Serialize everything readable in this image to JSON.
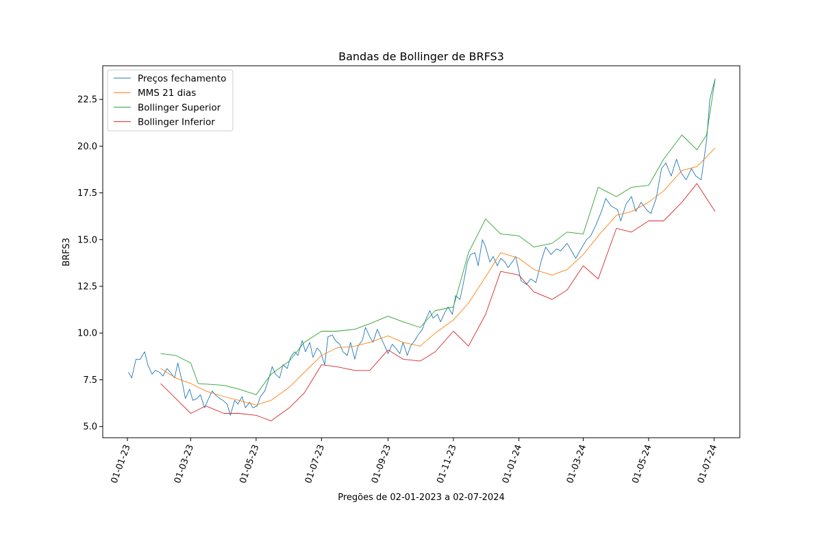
{
  "chart_data": {
    "type": "line",
    "title": "Bandas de Bollinger de BRFS3",
    "xlabel": "Pregões de 02-01-2023 a 02-07-2024",
    "ylabel": "BRFS3",
    "xlim": [
      "2022-12-09",
      "2024-07-25"
    ],
    "ylim": [
      4.4,
      24.3
    ],
    "grid": false,
    "legend_position": "top-left",
    "x_ticks": [
      {
        "date": "2023-01-01",
        "label": "01-01-23"
      },
      {
        "date": "2023-03-01",
        "label": "01-03-23"
      },
      {
        "date": "2023-05-01",
        "label": "01-05-23"
      },
      {
        "date": "2023-07-01",
        "label": "01-07-23"
      },
      {
        "date": "2023-09-01",
        "label": "01-09-23"
      },
      {
        "date": "2023-11-01",
        "label": "01-11-23"
      },
      {
        "date": "2024-01-01",
        "label": "01-01-24"
      },
      {
        "date": "2024-03-01",
        "label": "01-03-24"
      },
      {
        "date": "2024-05-01",
        "label": "01-05-24"
      },
      {
        "date": "2024-07-01",
        "label": "01-07-24"
      }
    ],
    "y_ticks": [
      {
        "value": 5.0,
        "label": "5.0"
      },
      {
        "value": 7.5,
        "label": "7.5"
      },
      {
        "value": 10.0,
        "label": "10.0"
      },
      {
        "value": 12.5,
        "label": "12.5"
      },
      {
        "value": 15.0,
        "label": "15.0"
      },
      {
        "value": 17.5,
        "label": "17.5"
      },
      {
        "value": 20.0,
        "label": "20.0"
      },
      {
        "value": 22.5,
        "label": "22.5"
      }
    ],
    "series": [
      {
        "name": "Preços fechamento",
        "color": "#1f77b4",
        "points": [
          [
            "2023-01-02",
            7.9
          ],
          [
            "2023-01-05",
            7.6
          ],
          [
            "2023-01-09",
            8.6
          ],
          [
            "2023-01-13",
            8.6
          ],
          [
            "2023-01-17",
            9.0
          ],
          [
            "2023-01-20",
            8.3
          ],
          [
            "2023-01-24",
            7.8
          ],
          [
            "2023-01-27",
            8.0
          ],
          [
            "2023-01-31",
            7.9
          ],
          [
            "2023-02-03",
            7.7
          ],
          [
            "2023-02-07",
            8.1
          ],
          [
            "2023-02-10",
            7.9
          ],
          [
            "2023-02-14",
            7.6
          ],
          [
            "2023-02-17",
            8.4
          ],
          [
            "2023-02-21",
            7.4
          ],
          [
            "2023-02-24",
            6.5
          ],
          [
            "2023-02-28",
            7.0
          ],
          [
            "2023-03-03",
            6.4
          ],
          [
            "2023-03-07",
            6.5
          ],
          [
            "2023-03-10",
            6.7
          ],
          [
            "2023-03-14",
            6.0
          ],
          [
            "2023-03-17",
            6.4
          ],
          [
            "2023-03-21",
            6.9
          ],
          [
            "2023-03-24",
            6.7
          ],
          [
            "2023-03-28",
            6.5
          ],
          [
            "2023-03-31",
            6.4
          ],
          [
            "2023-04-04",
            6.2
          ],
          [
            "2023-04-07",
            5.6
          ],
          [
            "2023-04-11",
            6.4
          ],
          [
            "2023-04-14",
            6.2
          ],
          [
            "2023-04-18",
            6.6
          ],
          [
            "2023-04-21",
            6.0
          ],
          [
            "2023-04-25",
            6.3
          ],
          [
            "2023-04-28",
            6.0
          ],
          [
            "2023-05-02",
            6.1
          ],
          [
            "2023-05-05",
            6.6
          ],
          [
            "2023-05-09",
            6.9
          ],
          [
            "2023-05-12",
            7.4
          ],
          [
            "2023-05-16",
            8.2
          ],
          [
            "2023-05-19",
            7.8
          ],
          [
            "2023-05-23",
            7.6
          ],
          [
            "2023-05-26",
            8.3
          ],
          [
            "2023-05-30",
            8.1
          ],
          [
            "2023-06-02",
            8.7
          ],
          [
            "2023-06-06",
            9.0
          ],
          [
            "2023-06-09",
            8.8
          ],
          [
            "2023-06-13",
            9.6
          ],
          [
            "2023-06-16",
            9.0
          ],
          [
            "2023-06-20",
            9.5
          ],
          [
            "2023-06-23",
            8.7
          ],
          [
            "2023-06-27",
            9.2
          ],
          [
            "2023-06-30",
            9.0
          ],
          [
            "2023-07-04",
            8.3
          ],
          [
            "2023-07-07",
            9.8
          ],
          [
            "2023-07-11",
            9.9
          ],
          [
            "2023-07-14",
            9.6
          ],
          [
            "2023-07-18",
            9.4
          ],
          [
            "2023-07-21",
            9.0
          ],
          [
            "2023-07-25",
            8.8
          ],
          [
            "2023-07-28",
            9.5
          ],
          [
            "2023-08-01",
            8.6
          ],
          [
            "2023-08-04",
            9.3
          ],
          [
            "2023-08-08",
            9.6
          ],
          [
            "2023-08-11",
            10.3
          ],
          [
            "2023-08-15",
            9.8
          ],
          [
            "2023-08-18",
            9.5
          ],
          [
            "2023-08-22",
            10.2
          ],
          [
            "2023-08-25",
            9.8
          ],
          [
            "2023-08-29",
            9.3
          ],
          [
            "2023-09-01",
            8.9
          ],
          [
            "2023-09-05",
            9.4
          ],
          [
            "2023-09-08",
            9.2
          ],
          [
            "2023-09-12",
            8.9
          ],
          [
            "2023-09-15",
            9.5
          ],
          [
            "2023-09-19",
            8.8
          ],
          [
            "2023-09-22",
            9.3
          ],
          [
            "2023-09-26",
            9.6
          ],
          [
            "2023-09-29",
            9.9
          ],
          [
            "2023-10-03",
            10.2
          ],
          [
            "2023-10-06",
            10.7
          ],
          [
            "2023-10-10",
            11.2
          ],
          [
            "2023-10-13",
            10.8
          ],
          [
            "2023-10-17",
            11.0
          ],
          [
            "2023-10-20",
            10.6
          ],
          [
            "2023-10-24",
            11.1
          ],
          [
            "2023-10-27",
            11.4
          ],
          [
            "2023-10-31",
            11.0
          ],
          [
            "2023-11-03",
            12.0
          ],
          [
            "2023-11-07",
            11.8
          ],
          [
            "2023-11-10",
            12.6
          ],
          [
            "2023-11-14",
            13.8
          ],
          [
            "2023-11-17",
            14.2
          ],
          [
            "2023-11-21",
            14.3
          ],
          [
            "2023-11-24",
            13.6
          ],
          [
            "2023-11-28",
            15.0
          ],
          [
            "2023-12-01",
            14.6
          ],
          [
            "2023-12-05",
            13.8
          ],
          [
            "2023-12-08",
            14.1
          ],
          [
            "2023-12-12",
            13.6
          ],
          [
            "2023-12-15",
            14.0
          ],
          [
            "2023-12-19",
            13.8
          ],
          [
            "2023-12-22",
            13.5
          ],
          [
            "2023-12-27",
            13.9
          ],
          [
            "2023-12-29",
            14.1
          ],
          [
            "2024-01-03",
            12.8
          ],
          [
            "2024-01-08",
            12.6
          ],
          [
            "2024-01-12",
            12.9
          ],
          [
            "2024-01-17",
            12.7
          ],
          [
            "2024-01-22",
            13.9
          ],
          [
            "2024-01-26",
            14.6
          ],
          [
            "2024-01-31",
            14.2
          ],
          [
            "2024-02-05",
            14.5
          ],
          [
            "2024-02-09",
            14.4
          ],
          [
            "2024-02-15",
            14.8
          ],
          [
            "2024-02-20",
            14.3
          ],
          [
            "2024-02-23",
            14.0
          ],
          [
            "2024-02-28",
            14.5
          ],
          [
            "2024-03-04",
            15.0
          ],
          [
            "2024-03-08",
            15.2
          ],
          [
            "2024-03-13",
            15.8
          ],
          [
            "2024-03-18",
            16.5
          ],
          [
            "2024-03-22",
            17.2
          ],
          [
            "2024-03-27",
            16.8
          ],
          [
            "2024-04-02",
            16.6
          ],
          [
            "2024-04-05",
            16.0
          ],
          [
            "2024-04-10",
            16.9
          ],
          [
            "2024-04-15",
            17.3
          ],
          [
            "2024-04-19",
            16.5
          ],
          [
            "2024-04-24",
            17.0
          ],
          [
            "2024-04-29",
            16.6
          ],
          [
            "2024-05-03",
            16.4
          ],
          [
            "2024-05-08",
            17.2
          ],
          [
            "2024-05-13",
            18.8
          ],
          [
            "2024-05-17",
            19.1
          ],
          [
            "2024-05-22",
            18.4
          ],
          [
            "2024-05-27",
            19.3
          ],
          [
            "2024-05-31",
            18.6
          ],
          [
            "2024-06-05",
            18.2
          ],
          [
            "2024-06-10",
            18.8
          ],
          [
            "2024-06-14",
            18.4
          ],
          [
            "2024-06-19",
            18.2
          ],
          [
            "2024-06-24",
            20.3
          ],
          [
            "2024-06-27",
            22.5
          ],
          [
            "2024-07-02",
            23.6
          ]
        ]
      },
      {
        "name": "MMS 21 dias",
        "color": "#ff7f0e",
        "points": [
          [
            "2023-02-01",
            8.1
          ],
          [
            "2023-02-15",
            7.6
          ],
          [
            "2023-03-01",
            7.3
          ],
          [
            "2023-03-15",
            6.9
          ],
          [
            "2023-04-01",
            6.6
          ],
          [
            "2023-04-15",
            6.4
          ],
          [
            "2023-05-01",
            6.15
          ],
          [
            "2023-05-15",
            6.4
          ],
          [
            "2023-06-01",
            7.1
          ],
          [
            "2023-06-15",
            7.9
          ],
          [
            "2023-07-01",
            8.8
          ],
          [
            "2023-07-15",
            9.2
          ],
          [
            "2023-08-01",
            9.3
          ],
          [
            "2023-08-15",
            9.5
          ],
          [
            "2023-09-01",
            9.85
          ],
          [
            "2023-09-15",
            9.5
          ],
          [
            "2023-10-01",
            9.3
          ],
          [
            "2023-10-15",
            10.0
          ],
          [
            "2023-11-01",
            10.7
          ],
          [
            "2023-11-15",
            11.6
          ],
          [
            "2023-12-01",
            13.0
          ],
          [
            "2023-12-15",
            14.3
          ],
          [
            "2024-01-01",
            14.0
          ],
          [
            "2024-01-15",
            13.4
          ],
          [
            "2024-02-01",
            13.1
          ],
          [
            "2024-02-15",
            13.4
          ],
          [
            "2024-03-01",
            14.2
          ],
          [
            "2024-03-15",
            15.2
          ],
          [
            "2024-04-01",
            16.3
          ],
          [
            "2024-04-15",
            16.5
          ],
          [
            "2024-05-01",
            17.0
          ],
          [
            "2024-05-15",
            17.6
          ],
          [
            "2024-06-01",
            18.7
          ],
          [
            "2024-06-15",
            18.9
          ],
          [
            "2024-07-02",
            19.9
          ]
        ]
      },
      {
        "name": "Bollinger Superior",
        "color": "#2ca02c",
        "points": [
          [
            "2023-02-01",
            8.9
          ],
          [
            "2023-02-15",
            8.8
          ],
          [
            "2023-03-01",
            8.4
          ],
          [
            "2023-03-08",
            7.3
          ],
          [
            "2023-04-01",
            7.2
          ],
          [
            "2023-04-15",
            7.0
          ],
          [
            "2023-05-01",
            6.7
          ],
          [
            "2023-05-15",
            7.8
          ],
          [
            "2023-06-01",
            8.5
          ],
          [
            "2023-06-15",
            9.5
          ],
          [
            "2023-07-01",
            10.1
          ],
          [
            "2023-07-15",
            10.1
          ],
          [
            "2023-08-01",
            10.2
          ],
          [
            "2023-08-15",
            10.5
          ],
          [
            "2023-09-01",
            10.9
          ],
          [
            "2023-09-15",
            10.6
          ],
          [
            "2023-10-01",
            10.3
          ],
          [
            "2023-10-15",
            11.2
          ],
          [
            "2023-11-01",
            11.4
          ],
          [
            "2023-11-15",
            14.3
          ],
          [
            "2023-12-01",
            16.1
          ],
          [
            "2023-12-15",
            15.3
          ],
          [
            "2024-01-01",
            15.2
          ],
          [
            "2024-01-15",
            14.6
          ],
          [
            "2024-02-01",
            14.8
          ],
          [
            "2024-02-15",
            15.4
          ],
          [
            "2024-03-01",
            15.3
          ],
          [
            "2024-03-15",
            17.8
          ],
          [
            "2024-04-01",
            17.3
          ],
          [
            "2024-04-15",
            17.8
          ],
          [
            "2024-05-01",
            17.9
          ],
          [
            "2024-05-15",
            19.3
          ],
          [
            "2024-06-01",
            20.6
          ],
          [
            "2024-06-15",
            19.8
          ],
          [
            "2024-06-24",
            20.6
          ],
          [
            "2024-07-02",
            23.6
          ]
        ]
      },
      {
        "name": "Bollinger Inferior",
        "color": "#d62728",
        "points": [
          [
            "2023-02-01",
            7.3
          ],
          [
            "2023-02-15",
            6.5
          ],
          [
            "2023-03-01",
            5.7
          ],
          [
            "2023-03-15",
            6.1
          ],
          [
            "2023-04-01",
            5.7
          ],
          [
            "2023-04-15",
            5.7
          ],
          [
            "2023-05-01",
            5.6
          ],
          [
            "2023-05-15",
            5.3
          ],
          [
            "2023-06-01",
            6.0
          ],
          [
            "2023-06-15",
            6.8
          ],
          [
            "2023-07-01",
            8.3
          ],
          [
            "2023-07-15",
            8.2
          ],
          [
            "2023-08-01",
            8.0
          ],
          [
            "2023-08-15",
            8.0
          ],
          [
            "2023-09-01",
            9.1
          ],
          [
            "2023-09-15",
            8.6
          ],
          [
            "2023-10-01",
            8.5
          ],
          [
            "2023-10-15",
            9.0
          ],
          [
            "2023-11-01",
            10.1
          ],
          [
            "2023-11-15",
            9.3
          ],
          [
            "2023-12-01",
            11.0
          ],
          [
            "2023-12-15",
            13.3
          ],
          [
            "2024-01-01",
            13.1
          ],
          [
            "2024-01-15",
            12.2
          ],
          [
            "2024-02-01",
            11.8
          ],
          [
            "2024-02-15",
            12.3
          ],
          [
            "2024-03-01",
            13.6
          ],
          [
            "2024-03-15",
            12.9
          ],
          [
            "2024-04-01",
            15.6
          ],
          [
            "2024-04-15",
            15.4
          ],
          [
            "2024-05-01",
            16.0
          ],
          [
            "2024-05-15",
            16.0
          ],
          [
            "2024-06-01",
            17.0
          ],
          [
            "2024-06-15",
            18.0
          ],
          [
            "2024-06-24",
            17.2
          ],
          [
            "2024-07-02",
            16.5
          ]
        ]
      }
    ]
  }
}
